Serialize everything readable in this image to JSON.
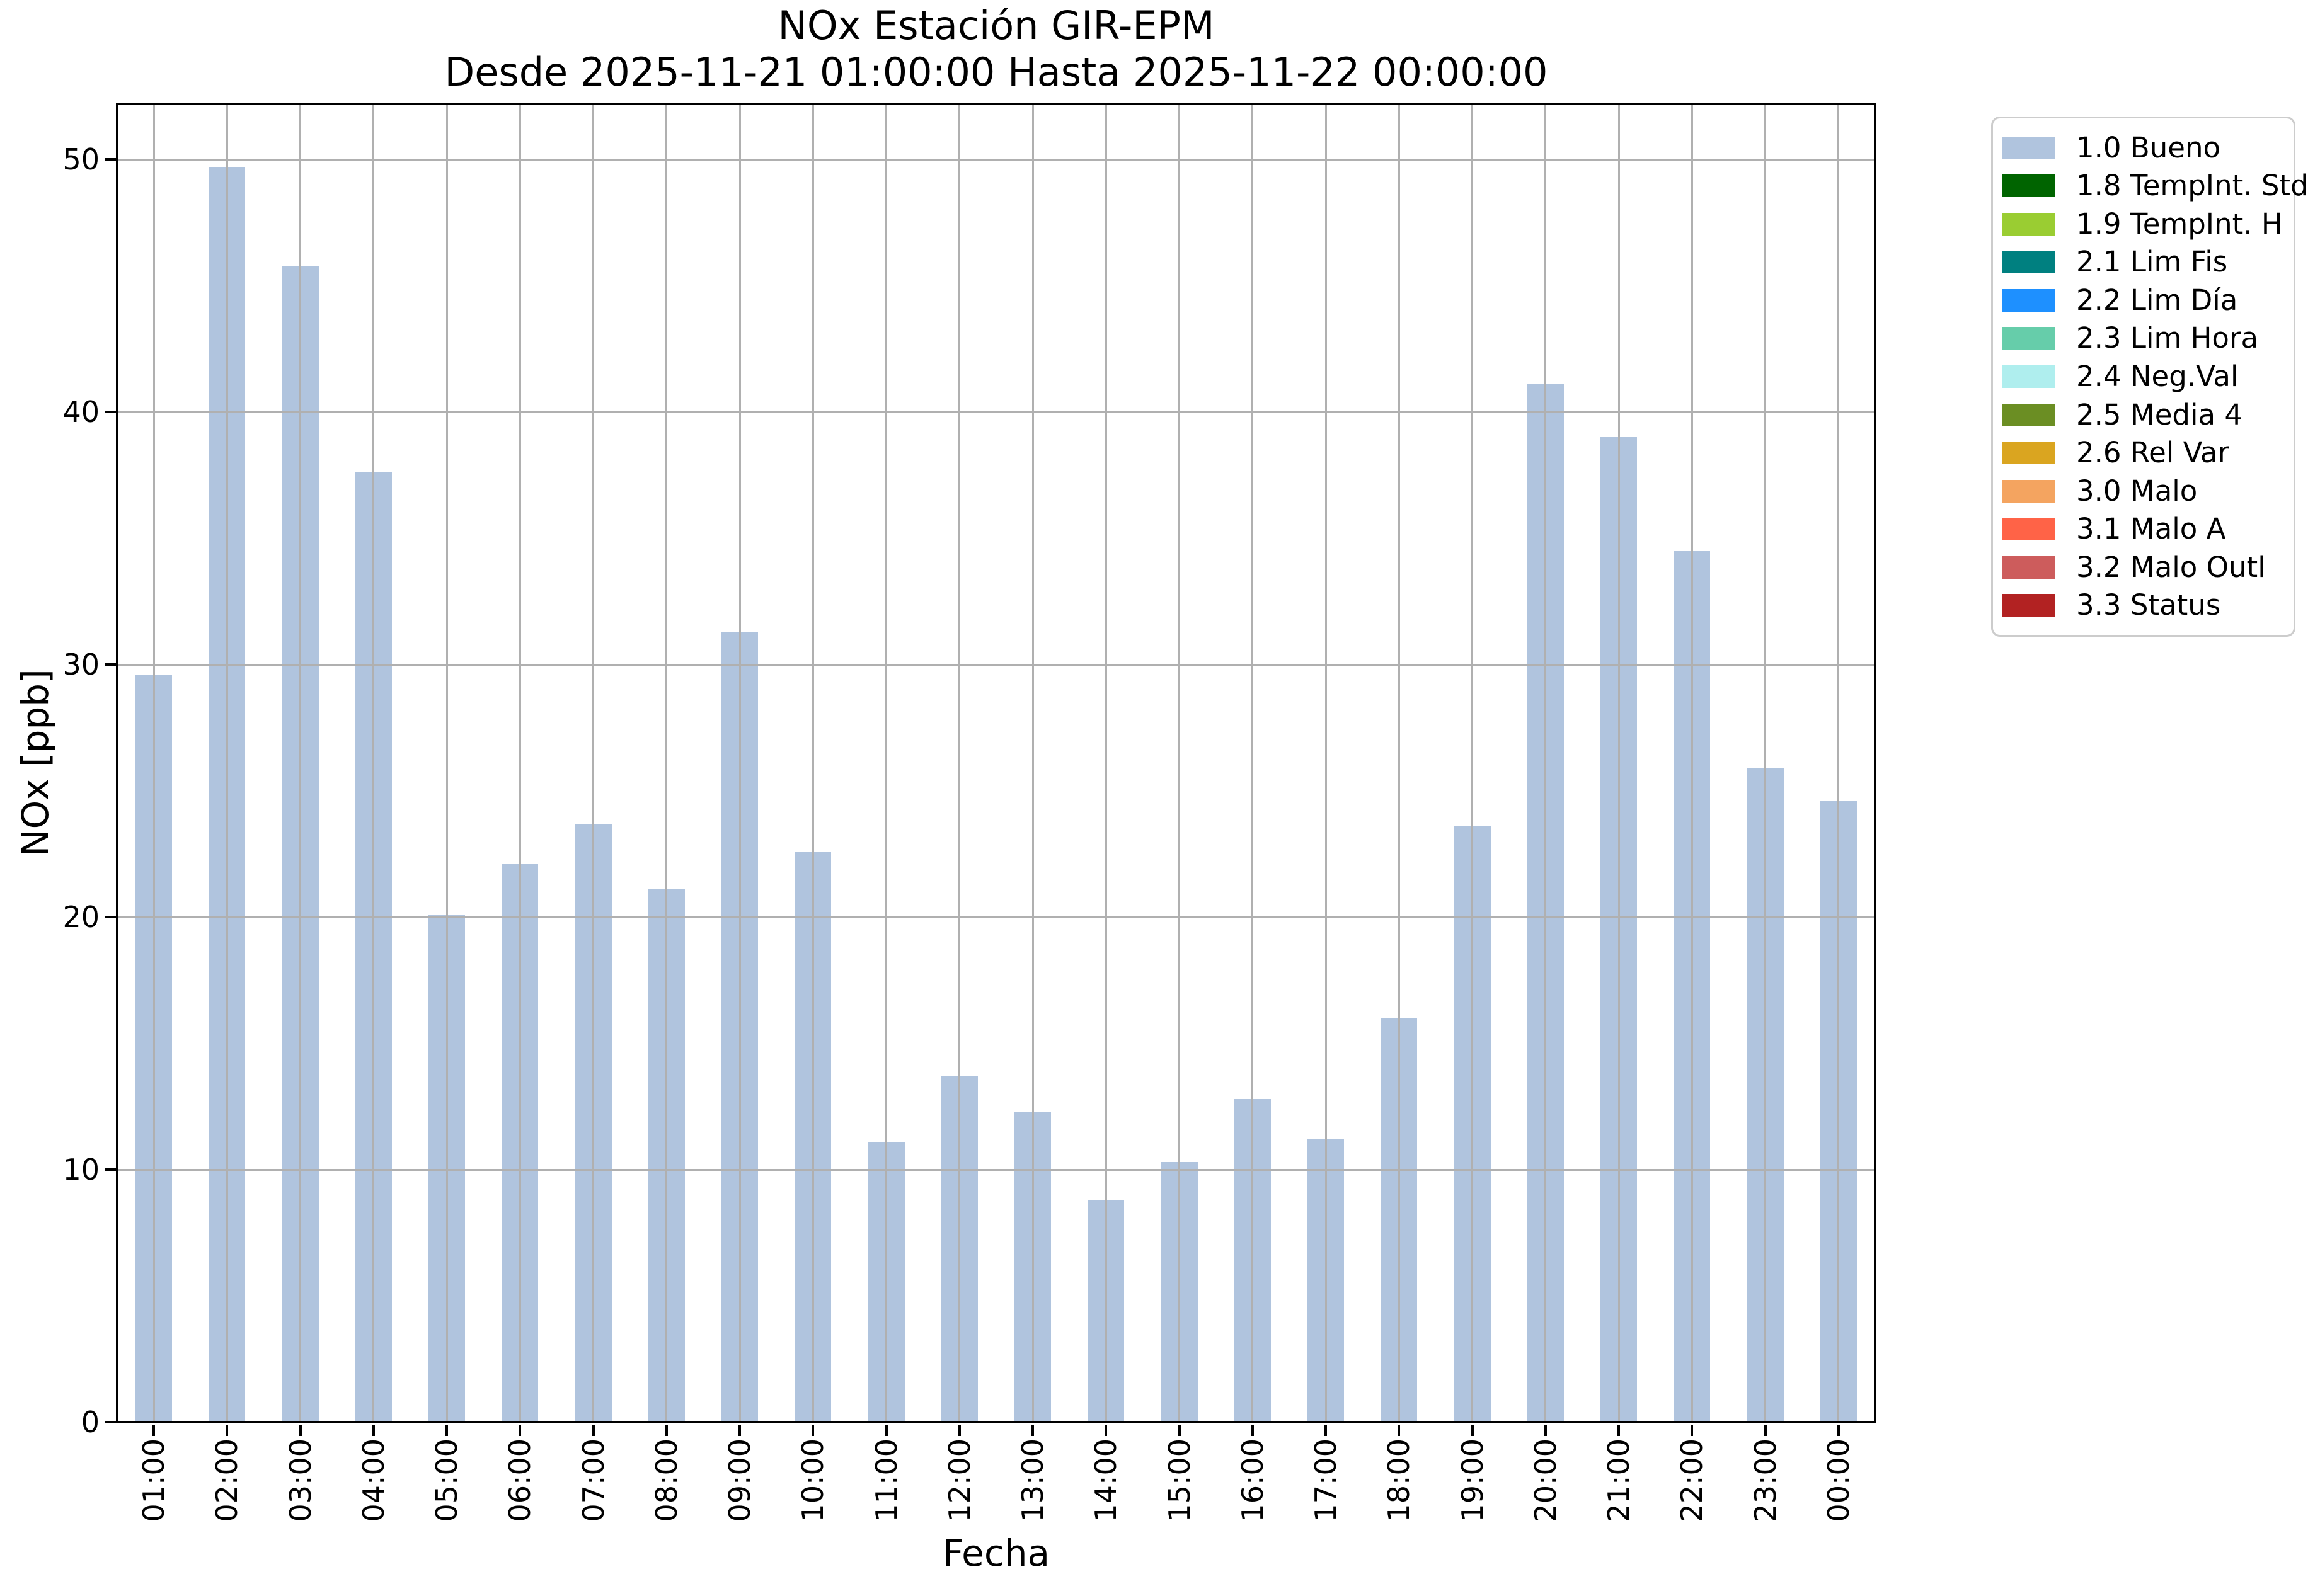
{
  "title": {
    "line1": "NOx Estación GIR-EPM",
    "line2": "Desde 2025-11-21 01:00:00 Hasta 2025-11-22 00:00:00"
  },
  "axes": {
    "xlabel": "Fecha",
    "ylabel": "NOx [ppb]",
    "y_tick_labels": [
      "0",
      "10",
      "20",
      "30",
      "40",
      "50"
    ]
  },
  "legend": {
    "items": [
      {
        "label": "1.0 Bueno",
        "color": "#b0c4de"
      },
      {
        "label": "1.8 TempInt. Std",
        "color": "#006400"
      },
      {
        "label": "1.9 TempInt. H",
        "color": "#9acd32"
      },
      {
        "label": "2.1 Lim Fis",
        "color": "#008080"
      },
      {
        "label": "2.2 Lim Día",
        "color": "#1e90ff"
      },
      {
        "label": "2.3 Lim Hora",
        "color": "#66cdaa"
      },
      {
        "label": "2.4 Neg.Val",
        "color": "#afeeee"
      },
      {
        "label": "2.5 Media 4",
        "color": "#6b8e23"
      },
      {
        "label": "2.6 Rel Var",
        "color": "#daa520"
      },
      {
        "label": "3.0 Malo",
        "color": "#f4a460"
      },
      {
        "label": "3.1 Malo A",
        "color": "#ff6347"
      },
      {
        "label": "3.2 Malo Outl",
        "color": "#cd5c5c"
      },
      {
        "label": "3.3 Status",
        "color": "#b22222"
      }
    ]
  },
  "chart_data": {
    "type": "bar",
    "title": "NOx Estación GIR-EPM\nDesde 2025-11-21 01:00:00 Hasta 2025-11-22 00:00:00",
    "xlabel": "Fecha",
    "ylabel": "NOx [ppb]",
    "categories": [
      "01:00",
      "02:00",
      "03:00",
      "04:00",
      "05:00",
      "06:00",
      "07:00",
      "08:00",
      "09:00",
      "10:00",
      "11:00",
      "12:00",
      "13:00",
      "14:00",
      "15:00",
      "16:00",
      "17:00",
      "18:00",
      "19:00",
      "20:00",
      "21:00",
      "22:00",
      "23:00",
      "00:00"
    ],
    "series": [
      {
        "name": "1.0 Bueno",
        "color": "#b0c4de",
        "values": [
          29.6,
          49.7,
          45.8,
          37.6,
          20.1,
          22.1,
          23.7,
          21.1,
          31.3,
          22.6,
          11.1,
          13.7,
          12.3,
          8.8,
          10.3,
          12.8,
          11.2,
          16.0,
          23.6,
          41.1,
          39.0,
          34.5,
          25.9,
          24.6
        ]
      }
    ],
    "ylim": [
      0,
      52.2
    ],
    "yticks": [
      0,
      10,
      20,
      30,
      40,
      50
    ],
    "grid": true,
    "grid_color": "#b0b0b0",
    "xtick_rotation": 90,
    "legend_position": "outside-upper-right"
  }
}
